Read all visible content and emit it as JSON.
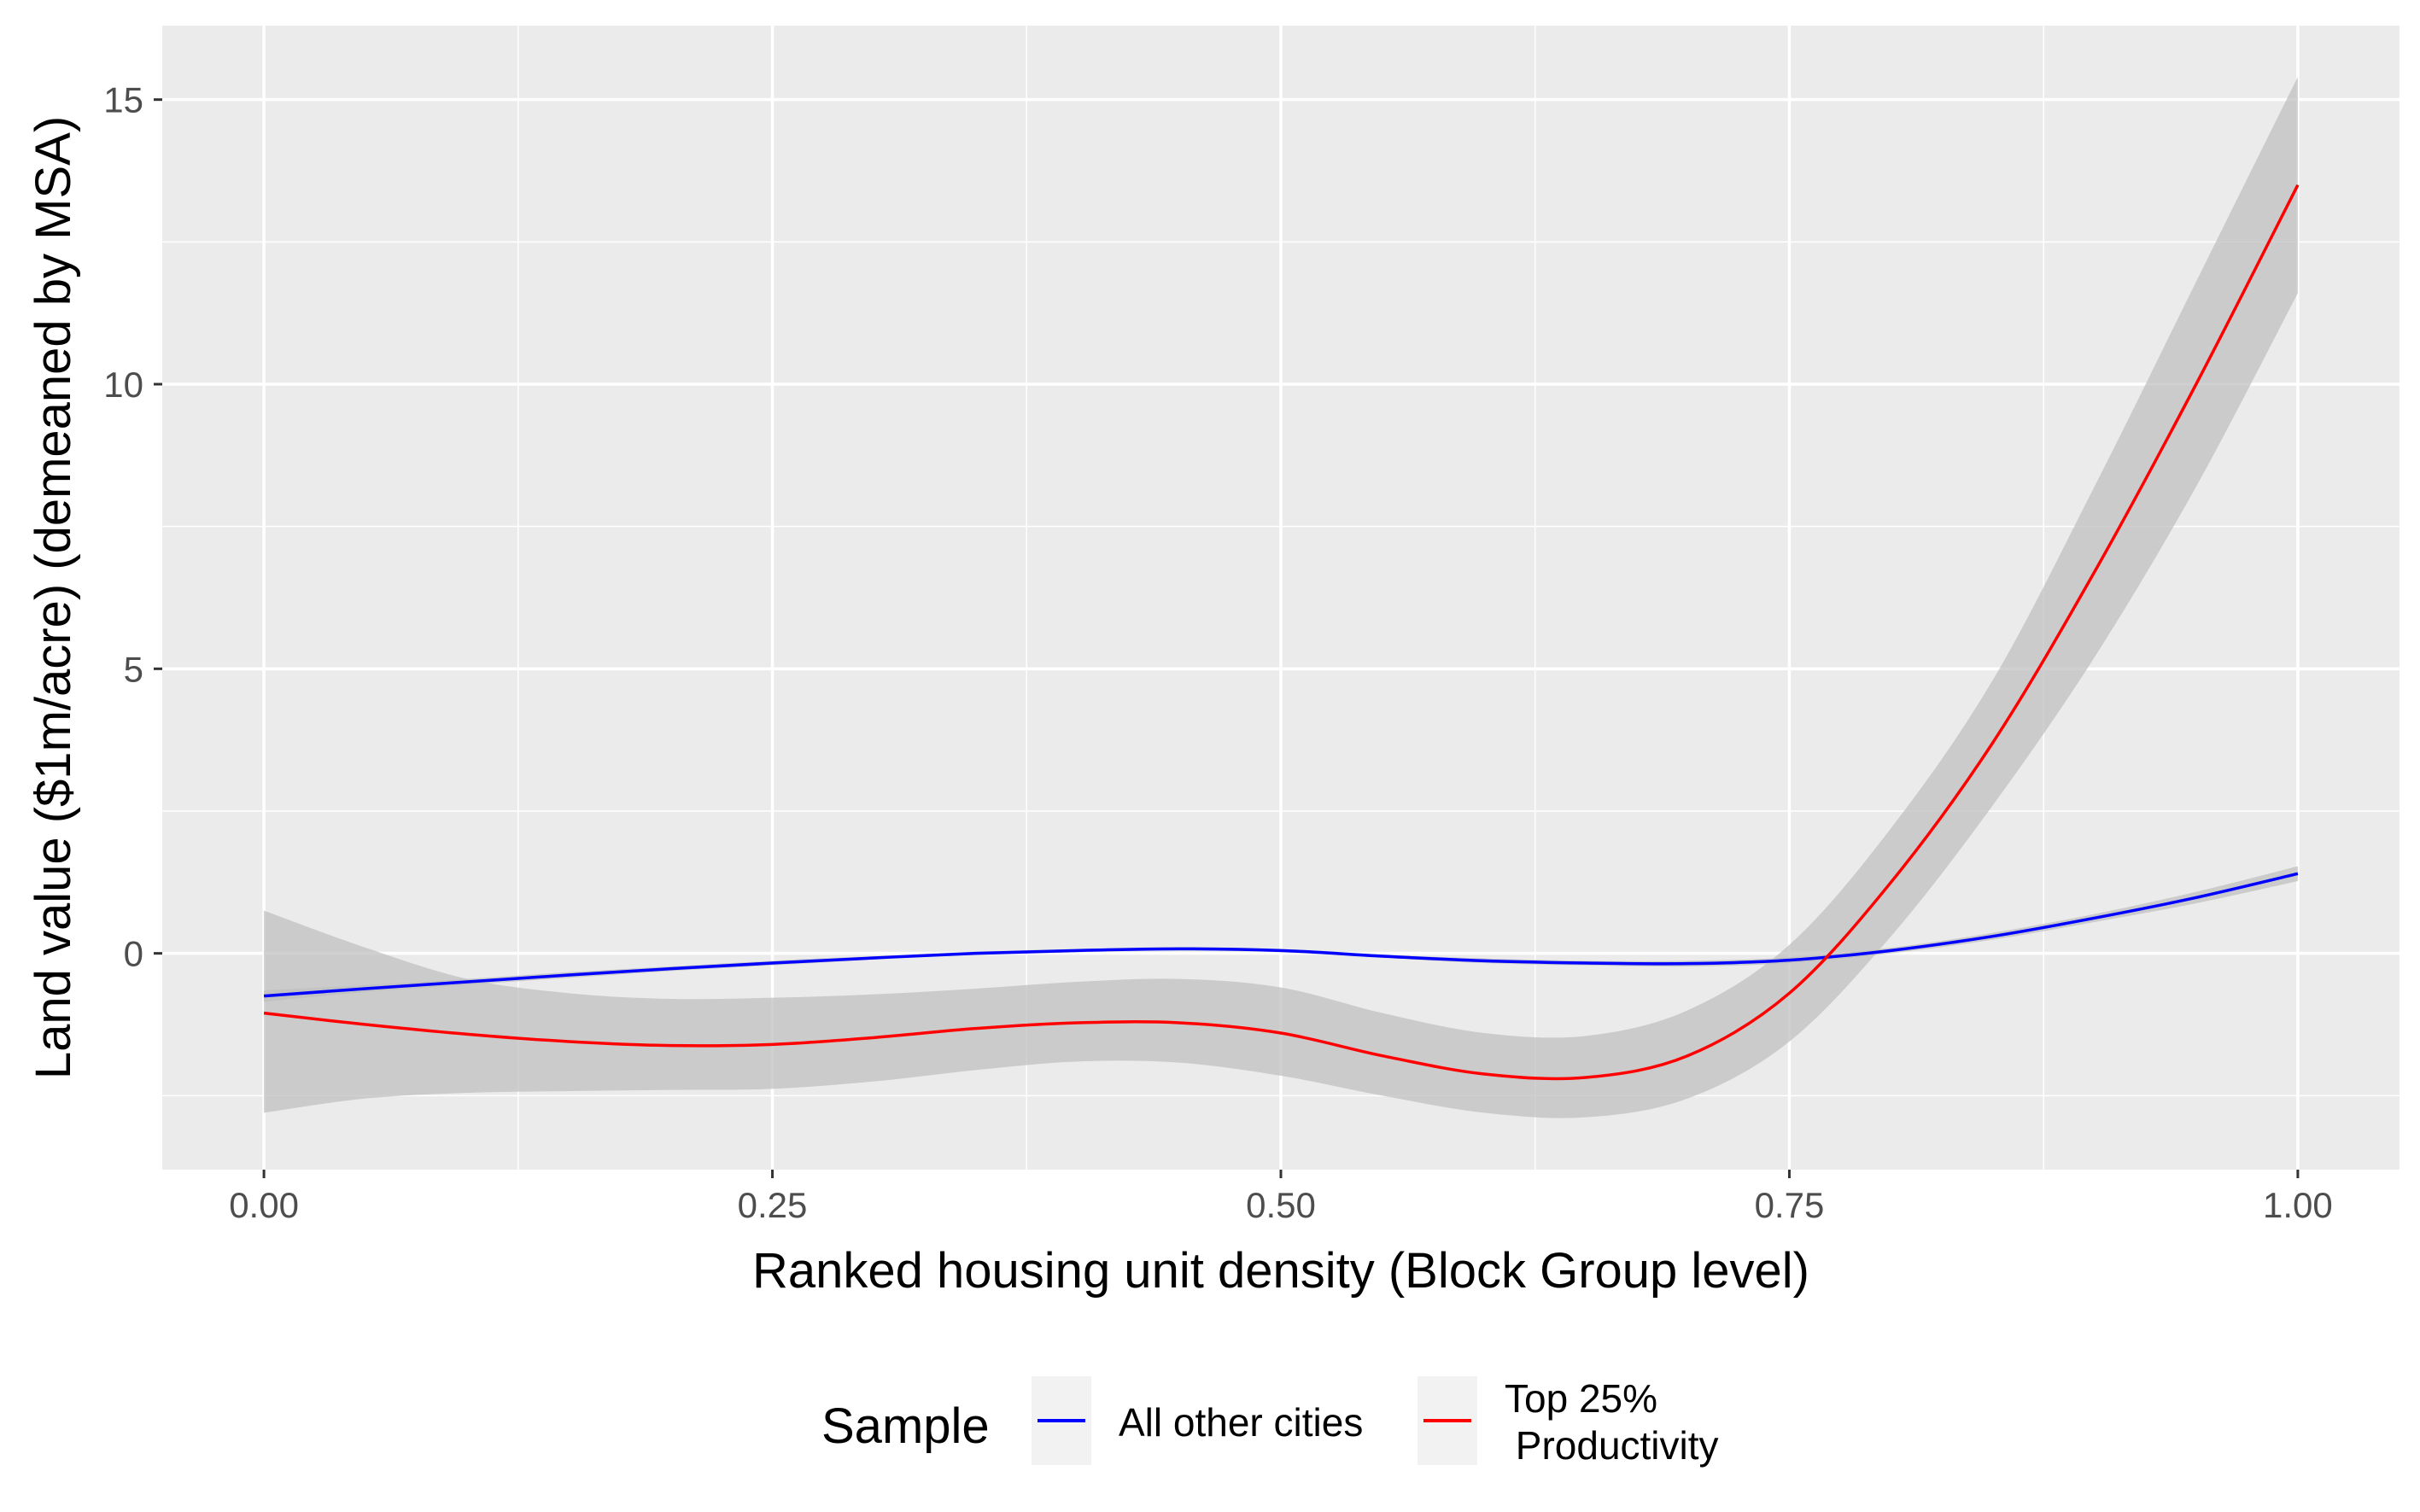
{
  "chart_data": {
    "type": "line",
    "title": "",
    "xlabel": "Ranked housing unit density (Block Group level)",
    "ylabel": "Land value ($1m/acre) (demeaned by MSA)",
    "xlim": [
      -0.05,
      1.05
    ],
    "ylim": [
      -3.8,
      16.3
    ],
    "x_ticks": [
      0,
      0.25,
      0.5,
      0.75,
      1
    ],
    "x_tick_labels": [
      "0.00",
      "0.25",
      "0.50",
      "0.75",
      "1.00"
    ],
    "y_ticks": [
      0,
      5,
      10,
      15
    ],
    "y_tick_labels": [
      "0",
      "5",
      "10",
      "15"
    ],
    "grid": true,
    "legend": {
      "title": "Sample",
      "placement": "bottom",
      "entries": [
        "All other cities",
        "Top 25%\n Productivity"
      ]
    },
    "colors": {
      "panel_bg": "#ebebeb",
      "grid": "#ffffff",
      "ribbon": "#bebebe",
      "legend_key_bg": "#f2f2f2"
    },
    "series": [
      {
        "name": "All other cities",
        "color": "#0000ff",
        "x": [
          0,
          0.05,
          0.1,
          0.15,
          0.2,
          0.25,
          0.3,
          0.35,
          0.4,
          0.45,
          0.5,
          0.55,
          0.6,
          0.65,
          0.7,
          0.75,
          0.8,
          0.85,
          0.9,
          0.95,
          1.0
        ],
        "y": [
          -0.75,
          -0.62,
          -0.5,
          -0.38,
          -0.27,
          -0.17,
          -0.08,
          0.0,
          0.05,
          0.08,
          0.05,
          -0.05,
          -0.13,
          -0.17,
          -0.18,
          -0.12,
          0.05,
          0.3,
          0.62,
          0.98,
          1.4
        ],
        "lower": [
          -0.85,
          -0.68,
          -0.55,
          -0.43,
          -0.31,
          -0.21,
          -0.11,
          -0.03,
          0.02,
          0.05,
          0.02,
          -0.08,
          -0.17,
          -0.21,
          -0.23,
          -0.17,
          0.0,
          0.24,
          0.55,
          0.88,
          1.27
        ],
        "upper": [
          -0.65,
          -0.56,
          -0.45,
          -0.33,
          -0.23,
          -0.13,
          -0.05,
          0.03,
          0.08,
          0.11,
          0.08,
          -0.02,
          -0.09,
          -0.13,
          -0.13,
          -0.07,
          0.1,
          0.36,
          0.69,
          1.08,
          1.53
        ]
      },
      {
        "name": "Top 25%\n Productivity",
        "color": "#ff0000",
        "x": [
          0,
          0.05,
          0.1,
          0.15,
          0.2,
          0.25,
          0.3,
          0.35,
          0.4,
          0.45,
          0.5,
          0.55,
          0.6,
          0.65,
          0.7,
          0.75,
          0.8,
          0.85,
          0.9,
          0.95,
          1.0
        ],
        "y": [
          -1.05,
          -1.25,
          -1.42,
          -1.55,
          -1.62,
          -1.6,
          -1.48,
          -1.32,
          -1.22,
          -1.22,
          -1.4,
          -1.8,
          -2.12,
          -2.18,
          -1.8,
          -0.7,
          1.25,
          3.7,
          6.7,
          10.0,
          13.5
        ],
        "lower": [
          -2.8,
          -2.55,
          -2.45,
          -2.42,
          -2.4,
          -2.38,
          -2.25,
          -2.05,
          -1.9,
          -1.92,
          -2.15,
          -2.5,
          -2.8,
          -2.88,
          -2.55,
          -1.55,
          0.3,
          2.6,
          5.2,
          8.2,
          11.6
        ],
        "upper": [
          0.75,
          0.1,
          -0.45,
          -0.7,
          -0.8,
          -0.78,
          -0.72,
          -0.62,
          -0.5,
          -0.45,
          -0.6,
          -1.05,
          -1.4,
          -1.45,
          -1.0,
          0.15,
          2.2,
          4.8,
          8.2,
          11.8,
          15.4
        ]
      }
    ]
  }
}
